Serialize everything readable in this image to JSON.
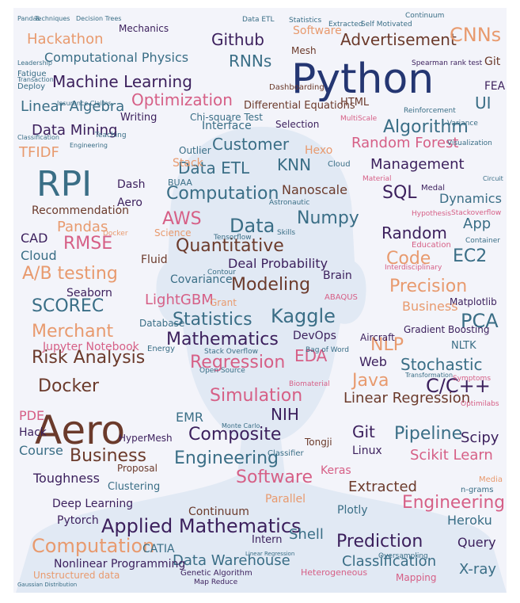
{
  "colors": {
    "panel": "#f3f4fa",
    "silhouette": "#e1e9f4",
    "navy": "#243672",
    "purple": "#3b1f5c",
    "teal": "#3a6e86",
    "pink": "#d65f86",
    "orange": "#e89a6e",
    "brown": "#6b3a2b"
  },
  "words": [
    {
      "text": "Python",
      "size": 52,
      "color": "navy"
    },
    {
      "text": "RPI",
      "size": 44,
      "color": "teal"
    },
    {
      "text": "Aero",
      "size": 50,
      "color": "brown"
    },
    {
      "text": "Github",
      "size": 20,
      "color": "purple"
    },
    {
      "text": "Advertisement",
      "size": 20,
      "color": "brown"
    },
    {
      "text": "CNNs",
      "size": 24,
      "color": "orange"
    },
    {
      "text": "Hackathon",
      "size": 18,
      "color": "orange"
    },
    {
      "text": "Mechanics",
      "size": 12,
      "color": "purple"
    },
    {
      "text": "Computational Physics",
      "size": 16,
      "color": "teal"
    },
    {
      "text": "Machine Learning",
      "size": 20,
      "color": "purple"
    },
    {
      "text": "RNNs",
      "size": 20,
      "color": "teal"
    },
    {
      "text": "Optimization",
      "size": 20,
      "color": "pink"
    },
    {
      "text": "Software",
      "size": 14,
      "color": "orange"
    },
    {
      "text": "Linear Algebra",
      "size": 18,
      "color": "teal"
    },
    {
      "text": "Data Mining",
      "size": 18,
      "color": "purple"
    },
    {
      "text": "Writing",
      "size": 13,
      "color": "purple"
    },
    {
      "text": "Chi-square Test",
      "size": 12,
      "color": "teal"
    },
    {
      "text": "Differential Equations",
      "size": 13,
      "color": "brown"
    },
    {
      "text": "Algorithm",
      "size": 22,
      "color": "teal"
    },
    {
      "text": "UI",
      "size": 20,
      "color": "teal"
    },
    {
      "text": "FEA",
      "size": 14,
      "color": "purple"
    },
    {
      "text": "Git",
      "size": 14,
      "color": "brown"
    },
    {
      "text": "TFIDF",
      "size": 18,
      "color": "orange"
    },
    {
      "text": "Interface",
      "size": 14,
      "color": "teal"
    },
    {
      "text": "Customer",
      "size": 20,
      "color": "teal"
    },
    {
      "text": "Selection",
      "size": 12,
      "color": "purple"
    },
    {
      "text": "Random Forest",
      "size": 18,
      "color": "pink"
    },
    {
      "text": "Management",
      "size": 18,
      "color": "purple"
    },
    {
      "text": "Data ETL",
      "size": 20,
      "color": "teal"
    },
    {
      "text": "KNN",
      "size": 20,
      "color": "teal"
    },
    {
      "text": "Hexo",
      "size": 14,
      "color": "orange"
    },
    {
      "text": "Outlier",
      "size": 12,
      "color": "teal"
    },
    {
      "text": "Stack",
      "size": 14,
      "color": "orange"
    },
    {
      "text": "Computation",
      "size": 22,
      "color": "teal"
    },
    {
      "text": "Nanoscale",
      "size": 16,
      "color": "brown"
    },
    {
      "text": "SQL",
      "size": 22,
      "color": "purple"
    },
    {
      "text": "Dynamics",
      "size": 16,
      "color": "teal"
    },
    {
      "text": "Recommendation",
      "size": 14,
      "color": "brown"
    },
    {
      "text": "Pandas",
      "size": 18,
      "color": "orange"
    },
    {
      "text": "Dash",
      "size": 14,
      "color": "purple"
    },
    {
      "text": "Aero",
      "size": 14,
      "color": "purple"
    },
    {
      "text": "AWS",
      "size": 22,
      "color": "pink"
    },
    {
      "text": "Data",
      "size": 24,
      "color": "teal"
    },
    {
      "text": "Numpy",
      "size": 22,
      "color": "teal"
    },
    {
      "text": "Random",
      "size": 20,
      "color": "purple"
    },
    {
      "text": "App",
      "size": 18,
      "color": "teal"
    },
    {
      "text": "CAD",
      "size": 16,
      "color": "purple"
    },
    {
      "text": "RMSE",
      "size": 22,
      "color": "pink"
    },
    {
      "text": "Cloud",
      "size": 16,
      "color": "teal"
    },
    {
      "text": "Quantitative",
      "size": 22,
      "color": "brown"
    },
    {
      "text": "Code",
      "size": 22,
      "color": "orange"
    },
    {
      "text": "EC2",
      "size": 22,
      "color": "teal"
    },
    {
      "text": "A/B testing",
      "size": 22,
      "color": "orange"
    },
    {
      "text": "Fluid",
      "size": 14,
      "color": "brown"
    },
    {
      "text": "Deal Probability",
      "size": 16,
      "color": "purple"
    },
    {
      "text": "Covariance",
      "size": 14,
      "color": "teal"
    },
    {
      "text": "Seaborn",
      "size": 14,
      "color": "purple"
    },
    {
      "text": "Brain",
      "size": 14,
      "color": "purple"
    },
    {
      "text": "Precision",
      "size": 22,
      "color": "orange"
    },
    {
      "text": "SCOREC",
      "size": 22,
      "color": "teal"
    },
    {
      "text": "LightGBM",
      "size": 18,
      "color": "pink"
    },
    {
      "text": "Modeling",
      "size": 22,
      "color": "brown"
    },
    {
      "text": "Business",
      "size": 16,
      "color": "orange"
    },
    {
      "text": "Matplotlib",
      "size": 12,
      "color": "purple"
    },
    {
      "text": "Merchant",
      "size": 22,
      "color": "orange"
    },
    {
      "text": "Statistics",
      "size": 22,
      "color": "teal"
    },
    {
      "text": "Kaggle",
      "size": 24,
      "color": "teal"
    },
    {
      "text": "PCA",
      "size": 24,
      "color": "teal"
    },
    {
      "text": "Database",
      "size": 12,
      "color": "teal"
    },
    {
      "text": "Mathematics",
      "size": 22,
      "color": "purple"
    },
    {
      "text": "DevOps",
      "size": 14,
      "color": "purple"
    },
    {
      "text": "Gradient Boosting",
      "size": 12,
      "color": "purple"
    },
    {
      "text": "Risk Analysis",
      "size": 22,
      "color": "brown"
    },
    {
      "text": "NLP",
      "size": 22,
      "color": "orange"
    },
    {
      "text": "NLTK",
      "size": 13,
      "color": "teal"
    },
    {
      "text": "Jupyter Notebook",
      "size": 14,
      "color": "pink"
    },
    {
      "text": "Aircraft",
      "size": 12,
      "color": "purple"
    },
    {
      "text": "EDA",
      "size": 20,
      "color": "pink"
    },
    {
      "text": "Stochastic",
      "size": 20,
      "color": "teal"
    },
    {
      "text": "Web",
      "size": 16,
      "color": "purple"
    },
    {
      "text": "Regression",
      "size": 22,
      "color": "pink"
    },
    {
      "text": "Java",
      "size": 22,
      "color": "orange"
    },
    {
      "text": "Docker",
      "size": 22,
      "color": "brown"
    },
    {
      "text": "Linear Regression",
      "size": 18,
      "color": "brown"
    },
    {
      "text": "C/C++",
      "size": 24,
      "color": "purple"
    },
    {
      "text": "Simulation",
      "size": 22,
      "color": "pink"
    },
    {
      "text": "EMR",
      "size": 16,
      "color": "teal"
    },
    {
      "text": "NIH",
      "size": 20,
      "color": "purple"
    },
    {
      "text": "PDE",
      "size": 16,
      "color": "pink"
    },
    {
      "text": "Composite",
      "size": 22,
      "color": "purple"
    },
    {
      "text": "Business",
      "size": 22,
      "color": "brown"
    },
    {
      "text": "Pipeline",
      "size": 22,
      "color": "teal"
    },
    {
      "text": "Git",
      "size": 20,
      "color": "purple"
    },
    {
      "text": "Scipy",
      "size": 18,
      "color": "purple"
    },
    {
      "text": "Hack",
      "size": 14,
      "color": "purple"
    },
    {
      "text": "HyperMesh",
      "size": 12,
      "color": "purple"
    },
    {
      "text": "Course",
      "size": 16,
      "color": "teal"
    },
    {
      "text": "Engineering",
      "size": 22,
      "color": "teal"
    },
    {
      "text": "Scikit Learn",
      "size": 18,
      "color": "pink"
    },
    {
      "text": "Linux",
      "size": 14,
      "color": "purple"
    },
    {
      "text": "Proposal",
      "size": 12,
      "color": "brown"
    },
    {
      "text": "Tongji",
      "size": 12,
      "color": "brown"
    },
    {
      "text": "Toughness",
      "size": 16,
      "color": "purple"
    },
    {
      "text": "Software",
      "size": 22,
      "color": "pink"
    },
    {
      "text": "Keras",
      "size": 14,
      "color": "pink"
    },
    {
      "text": "Extracted",
      "size": 18,
      "color": "brown"
    },
    {
      "text": "Engineering",
      "size": 22,
      "color": "pink"
    },
    {
      "text": "Clustering",
      "size": 13,
      "color": "teal"
    },
    {
      "text": "Parallel",
      "size": 14,
      "color": "orange"
    },
    {
      "text": "Heroku",
      "size": 16,
      "color": "teal"
    },
    {
      "text": "Deep Learning",
      "size": 14,
      "color": "purple"
    },
    {
      "text": "Continuum",
      "size": 14,
      "color": "brown"
    },
    {
      "text": "Plotly",
      "size": 14,
      "color": "teal"
    },
    {
      "text": "Pytorch",
      "size": 14,
      "color": "purple"
    },
    {
      "text": "Applied Mathematics",
      "size": 24,
      "color": "purple"
    },
    {
      "text": "Shell",
      "size": 18,
      "color": "teal"
    },
    {
      "text": "Intern",
      "size": 13,
      "color": "purple"
    },
    {
      "text": "Prediction",
      "size": 22,
      "color": "purple"
    },
    {
      "text": "Computation",
      "size": 24,
      "color": "orange"
    },
    {
      "text": "CATIA",
      "size": 14,
      "color": "teal"
    },
    {
      "text": "Query",
      "size": 16,
      "color": "purple"
    },
    {
      "text": "Data Warehouse",
      "size": 18,
      "color": "teal"
    },
    {
      "text": "Classification",
      "size": 18,
      "color": "teal"
    },
    {
      "text": "Nonlinear Programming",
      "size": 14,
      "color": "purple"
    },
    {
      "text": "X-ray",
      "size": 18,
      "color": "teal"
    },
    {
      "text": "Unstructured data",
      "size": 12,
      "color": "orange"
    },
    {
      "text": "Genetic Algorithm",
      "size": 10,
      "color": "purple"
    },
    {
      "text": "Map Reduce",
      "size": 9,
      "color": "purple"
    },
    {
      "text": "Heterogeneous",
      "size": 11,
      "color": "pink"
    },
    {
      "text": "Mapping",
      "size": 12,
      "color": "pink"
    },
    {
      "text": "HTML",
      "size": 13,
      "color": "brown"
    },
    {
      "text": "Mesh",
      "size": 12,
      "color": "brown"
    },
    {
      "text": "Dashboarding",
      "size": 10,
      "color": "brown"
    },
    {
      "text": "Visualization",
      "size": 9,
      "color": "teal"
    },
    {
      "text": "Variance",
      "size": 9,
      "color": "teal"
    },
    {
      "text": "Spearman rank test",
      "size": 9,
      "color": "purple"
    },
    {
      "text": "Self Motivated",
      "size": 9,
      "color": "teal"
    },
    {
      "text": "Continuum",
      "size": 9,
      "color": "teal"
    },
    {
      "text": "Extracted",
      "size": 9,
      "color": "teal"
    },
    {
      "text": "Statistics",
      "size": 9,
      "color": "teal"
    },
    {
      "text": "Data ETL",
      "size": 9,
      "color": "teal"
    },
    {
      "text": "Techniques",
      "size": 8,
      "color": "teal"
    },
    {
      "text": "Decision Trees",
      "size": 8,
      "color": "teal"
    },
    {
      "text": "Pandas",
      "size": 8,
      "color": "teal"
    },
    {
      "text": "Deploy",
      "size": 10,
      "color": "teal"
    },
    {
      "text": "Fatigue",
      "size": 10,
      "color": "teal"
    },
    {
      "text": "Leadership",
      "size": 8,
      "color": "teal"
    },
    {
      "text": "Insurance Claims",
      "size": 8,
      "color": "teal"
    },
    {
      "text": "Transaction",
      "size": 8,
      "color": "teal"
    },
    {
      "text": "Reinforcement",
      "size": 9,
      "color": "teal"
    },
    {
      "text": "MultiScale",
      "size": 9,
      "color": "pink"
    },
    {
      "text": "Teaching",
      "size": 9,
      "color": "teal"
    },
    {
      "text": "Classification",
      "size": 8,
      "color": "teal"
    },
    {
      "text": "Engineering",
      "size": 8,
      "color": "teal"
    },
    {
      "text": "Medal",
      "size": 10,
      "color": "purple"
    },
    {
      "text": "Astronautic",
      "size": 9,
      "color": "teal"
    },
    {
      "text": "Skills",
      "size": 9,
      "color": "teal"
    },
    {
      "text": "Tensorflow",
      "size": 9,
      "color": "teal"
    },
    {
      "text": "Hypothesis",
      "size": 9,
      "color": "pink"
    },
    {
      "text": "Stackoverflow",
      "size": 9,
      "color": "pink"
    },
    {
      "text": "Education",
      "size": 10,
      "color": "pink"
    },
    {
      "text": "Container",
      "size": 9,
      "color": "teal"
    },
    {
      "text": "Interdisciplinary",
      "size": 9,
      "color": "pink"
    },
    {
      "text": "Contour",
      "size": 9,
      "color": "teal"
    },
    {
      "text": "Grant",
      "size": 12,
      "color": "orange"
    },
    {
      "text": "ABAQUS",
      "size": 10,
      "color": "pink"
    },
    {
      "text": "Stack Overflow",
      "size": 9,
      "color": "teal"
    },
    {
      "text": "Open Source",
      "size": 9,
      "color": "teal"
    },
    {
      "text": "Bag of Word",
      "size": 9,
      "color": "teal"
    },
    {
      "text": "Monte Carlo",
      "size": 8,
      "color": "teal"
    },
    {
      "text": "Optimilabs",
      "size": 9,
      "color": "pink"
    },
    {
      "text": "Symptoms",
      "size": 9,
      "color": "pink"
    },
    {
      "text": "Transformation",
      "size": 8,
      "color": "teal"
    },
    {
      "text": "Oversampling",
      "size": 9,
      "color": "teal"
    },
    {
      "text": "n-grams",
      "size": 10,
      "color": "teal"
    },
    {
      "text": "Media",
      "size": 10,
      "color": "orange"
    },
    {
      "text": "Gaussian Distribution",
      "size": 7,
      "color": "teal"
    },
    {
      "text": "Linear Regression",
      "size": 7,
      "color": "teal"
    },
    {
      "text": "Energy",
      "size": 10,
      "color": "teal"
    },
    {
      "text": "Cloud",
      "size": 10,
      "color": "teal"
    },
    {
      "text": "Docker",
      "size": 9,
      "color": "orange"
    },
    {
      "text": "BUAA",
      "size": 11,
      "color": "teal"
    },
    {
      "text": "Science",
      "size": 12,
      "color": "orange"
    },
    {
      "text": "Biomaterial",
      "size": 9,
      "color": "pink"
    },
    {
      "text": "Classifier",
      "size": 10,
      "color": "teal"
    },
    {
      "text": "Material",
      "size": 9,
      "color": "pink"
    },
    {
      "text": "Circuit",
      "size": 8,
      "color": "teal"
    }
  ]
}
